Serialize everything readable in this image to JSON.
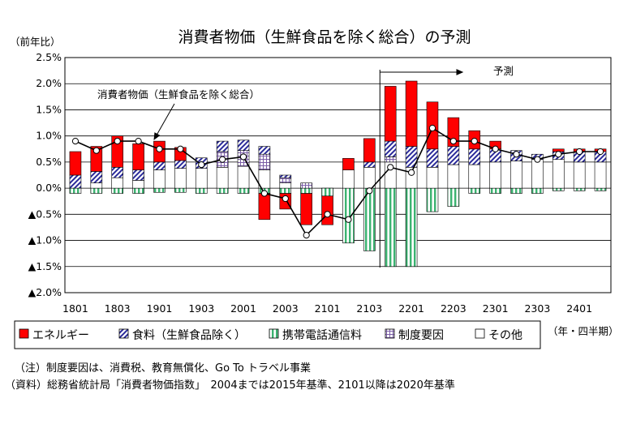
{
  "chart_data": {
    "type": "bar",
    "title": "消費者物価（生鮮食品を除く総合）の予測",
    "ylabel": "（前年比）",
    "xlabel": "（年・四半期）",
    "ylim": [
      -2.0,
      2.5
    ],
    "yticks": [
      {
        "v": 2.5,
        "label": "2.5%"
      },
      {
        "v": 2.0,
        "label": "2.0%"
      },
      {
        "v": 1.5,
        "label": "1.5%"
      },
      {
        "v": 1.0,
        "label": "1.0%"
      },
      {
        "v": 0.5,
        "label": "0.5%"
      },
      {
        "v": 0.0,
        "label": "0.0%"
      },
      {
        "v": -0.5,
        "label": "▲0.5%"
      },
      {
        "v": -1.0,
        "label": "▲1.0%"
      },
      {
        "v": -1.5,
        "label": "▲1.5%"
      },
      {
        "v": -2.0,
        "label": "▲2.0%"
      }
    ],
    "categories": [
      "1801",
      "1802",
      "1803",
      "1804",
      "1901",
      "1902",
      "1903",
      "1904",
      "2001",
      "2002",
      "2003",
      "2004",
      "2101",
      "2102",
      "2103",
      "2104",
      "2201",
      "2202",
      "2203",
      "2204",
      "2301",
      "2302",
      "2303",
      "2304",
      "2401",
      "2402"
    ],
    "xtick_labels": [
      {
        "i": 0,
        "label": "1801"
      },
      {
        "i": 2,
        "label": "1803"
      },
      {
        "i": 4,
        "label": "1901"
      },
      {
        "i": 6,
        "label": "1903"
      },
      {
        "i": 8,
        "label": "2001"
      },
      {
        "i": 10,
        "label": "2003"
      },
      {
        "i": 12,
        "label": "2101"
      },
      {
        "i": 14,
        "label": "2103"
      },
      {
        "i": 16,
        "label": "2201"
      },
      {
        "i": 18,
        "label": "2203"
      },
      {
        "i": 20,
        "label": "2301"
      },
      {
        "i": 22,
        "label": "2303"
      },
      {
        "i": 24,
        "label": "2401"
      }
    ],
    "series": [
      {
        "name": "エネルギー",
        "key": "energy",
        "color": "#ff0000",
        "values": [
          0.45,
          0.48,
          0.6,
          0.5,
          0.4,
          0.25,
          0.0,
          0.0,
          0.0,
          -0.5,
          -0.3,
          -0.6,
          -0.55,
          0.22,
          0.45,
          1.05,
          1.25,
          0.9,
          0.55,
          0.35,
          0.15,
          0.0,
          0.0,
          0.05,
          0.05,
          0.05
        ]
      },
      {
        "name": "食料（生鮮食品除く）",
        "key": "food",
        "color": "#2a2a9a",
        "values": [
          0.25,
          0.22,
          0.2,
          0.2,
          0.15,
          0.15,
          0.2,
          0.2,
          0.2,
          0.15,
          0.05,
          0.0,
          0.0,
          0.0,
          0.1,
          0.3,
          0.4,
          0.35,
          0.35,
          0.3,
          0.25,
          0.2,
          0.1,
          0.15,
          0.2,
          0.2
        ]
      },
      {
        "name": "携帯電話通信料",
        "key": "mobile",
        "color": "#3cb371",
        "values": [
          -0.1,
          -0.1,
          -0.1,
          -0.1,
          -0.08,
          -0.08,
          -0.1,
          -0.1,
          -0.1,
          -0.1,
          -0.1,
          -0.1,
          -0.15,
          -1.05,
          -1.2,
          -1.5,
          -1.5,
          -0.45,
          -0.35,
          -0.1,
          -0.1,
          -0.1,
          -0.1,
          -0.05,
          -0.05,
          -0.05
        ]
      },
      {
        "name": "制度要因",
        "key": "inst",
        "color": "#7b5ea7",
        "values": [
          0.0,
          0.0,
          0.0,
          0.0,
          0.0,
          0.0,
          0.0,
          0.3,
          0.3,
          0.3,
          0.1,
          0.1,
          0.0,
          0.0,
          0.0,
          0.1,
          0.0,
          0.0,
          0.0,
          0.0,
          0.0,
          0.0,
          0.0,
          0.0,
          0.0,
          0.0
        ]
      },
      {
        "name": "その他",
        "key": "other",
        "color": "#ffffff",
        "values": [
          0.0,
          0.1,
          0.2,
          0.15,
          0.35,
          0.38,
          0.38,
          0.4,
          0.42,
          0.35,
          0.1,
          0.0,
          0.0,
          0.35,
          0.4,
          0.5,
          0.4,
          0.4,
          0.45,
          0.45,
          0.5,
          0.52,
          0.55,
          0.55,
          0.5,
          0.5
        ]
      },
      {
        "name": "消費者物価（生鮮食品を除く総合）",
        "key": "cpi",
        "type": "line",
        "values": [
          0.9,
          0.72,
          0.9,
          0.9,
          0.75,
          0.75,
          0.45,
          0.55,
          0.6,
          -0.1,
          -0.2,
          -0.9,
          -0.5,
          -0.6,
          -0.05,
          0.4,
          0.3,
          1.15,
          0.9,
          0.9,
          0.75,
          0.65,
          0.55,
          0.65,
          0.7,
          0.7
        ]
      }
    ],
    "forecast_start_index": 15,
    "annotations": {
      "cpi_label": "消費者物価（生鮮食品を除く総合）",
      "forecast_label": "予測"
    },
    "legend_position": "bottom",
    "notes": [
      "（注）制度要因は、消費税、教育無償化、Go To トラベル事業",
      "（資料）総務省統計局「消費者物価指数」　2004までは2015年基準、2101以降は2020年基準"
    ]
  }
}
